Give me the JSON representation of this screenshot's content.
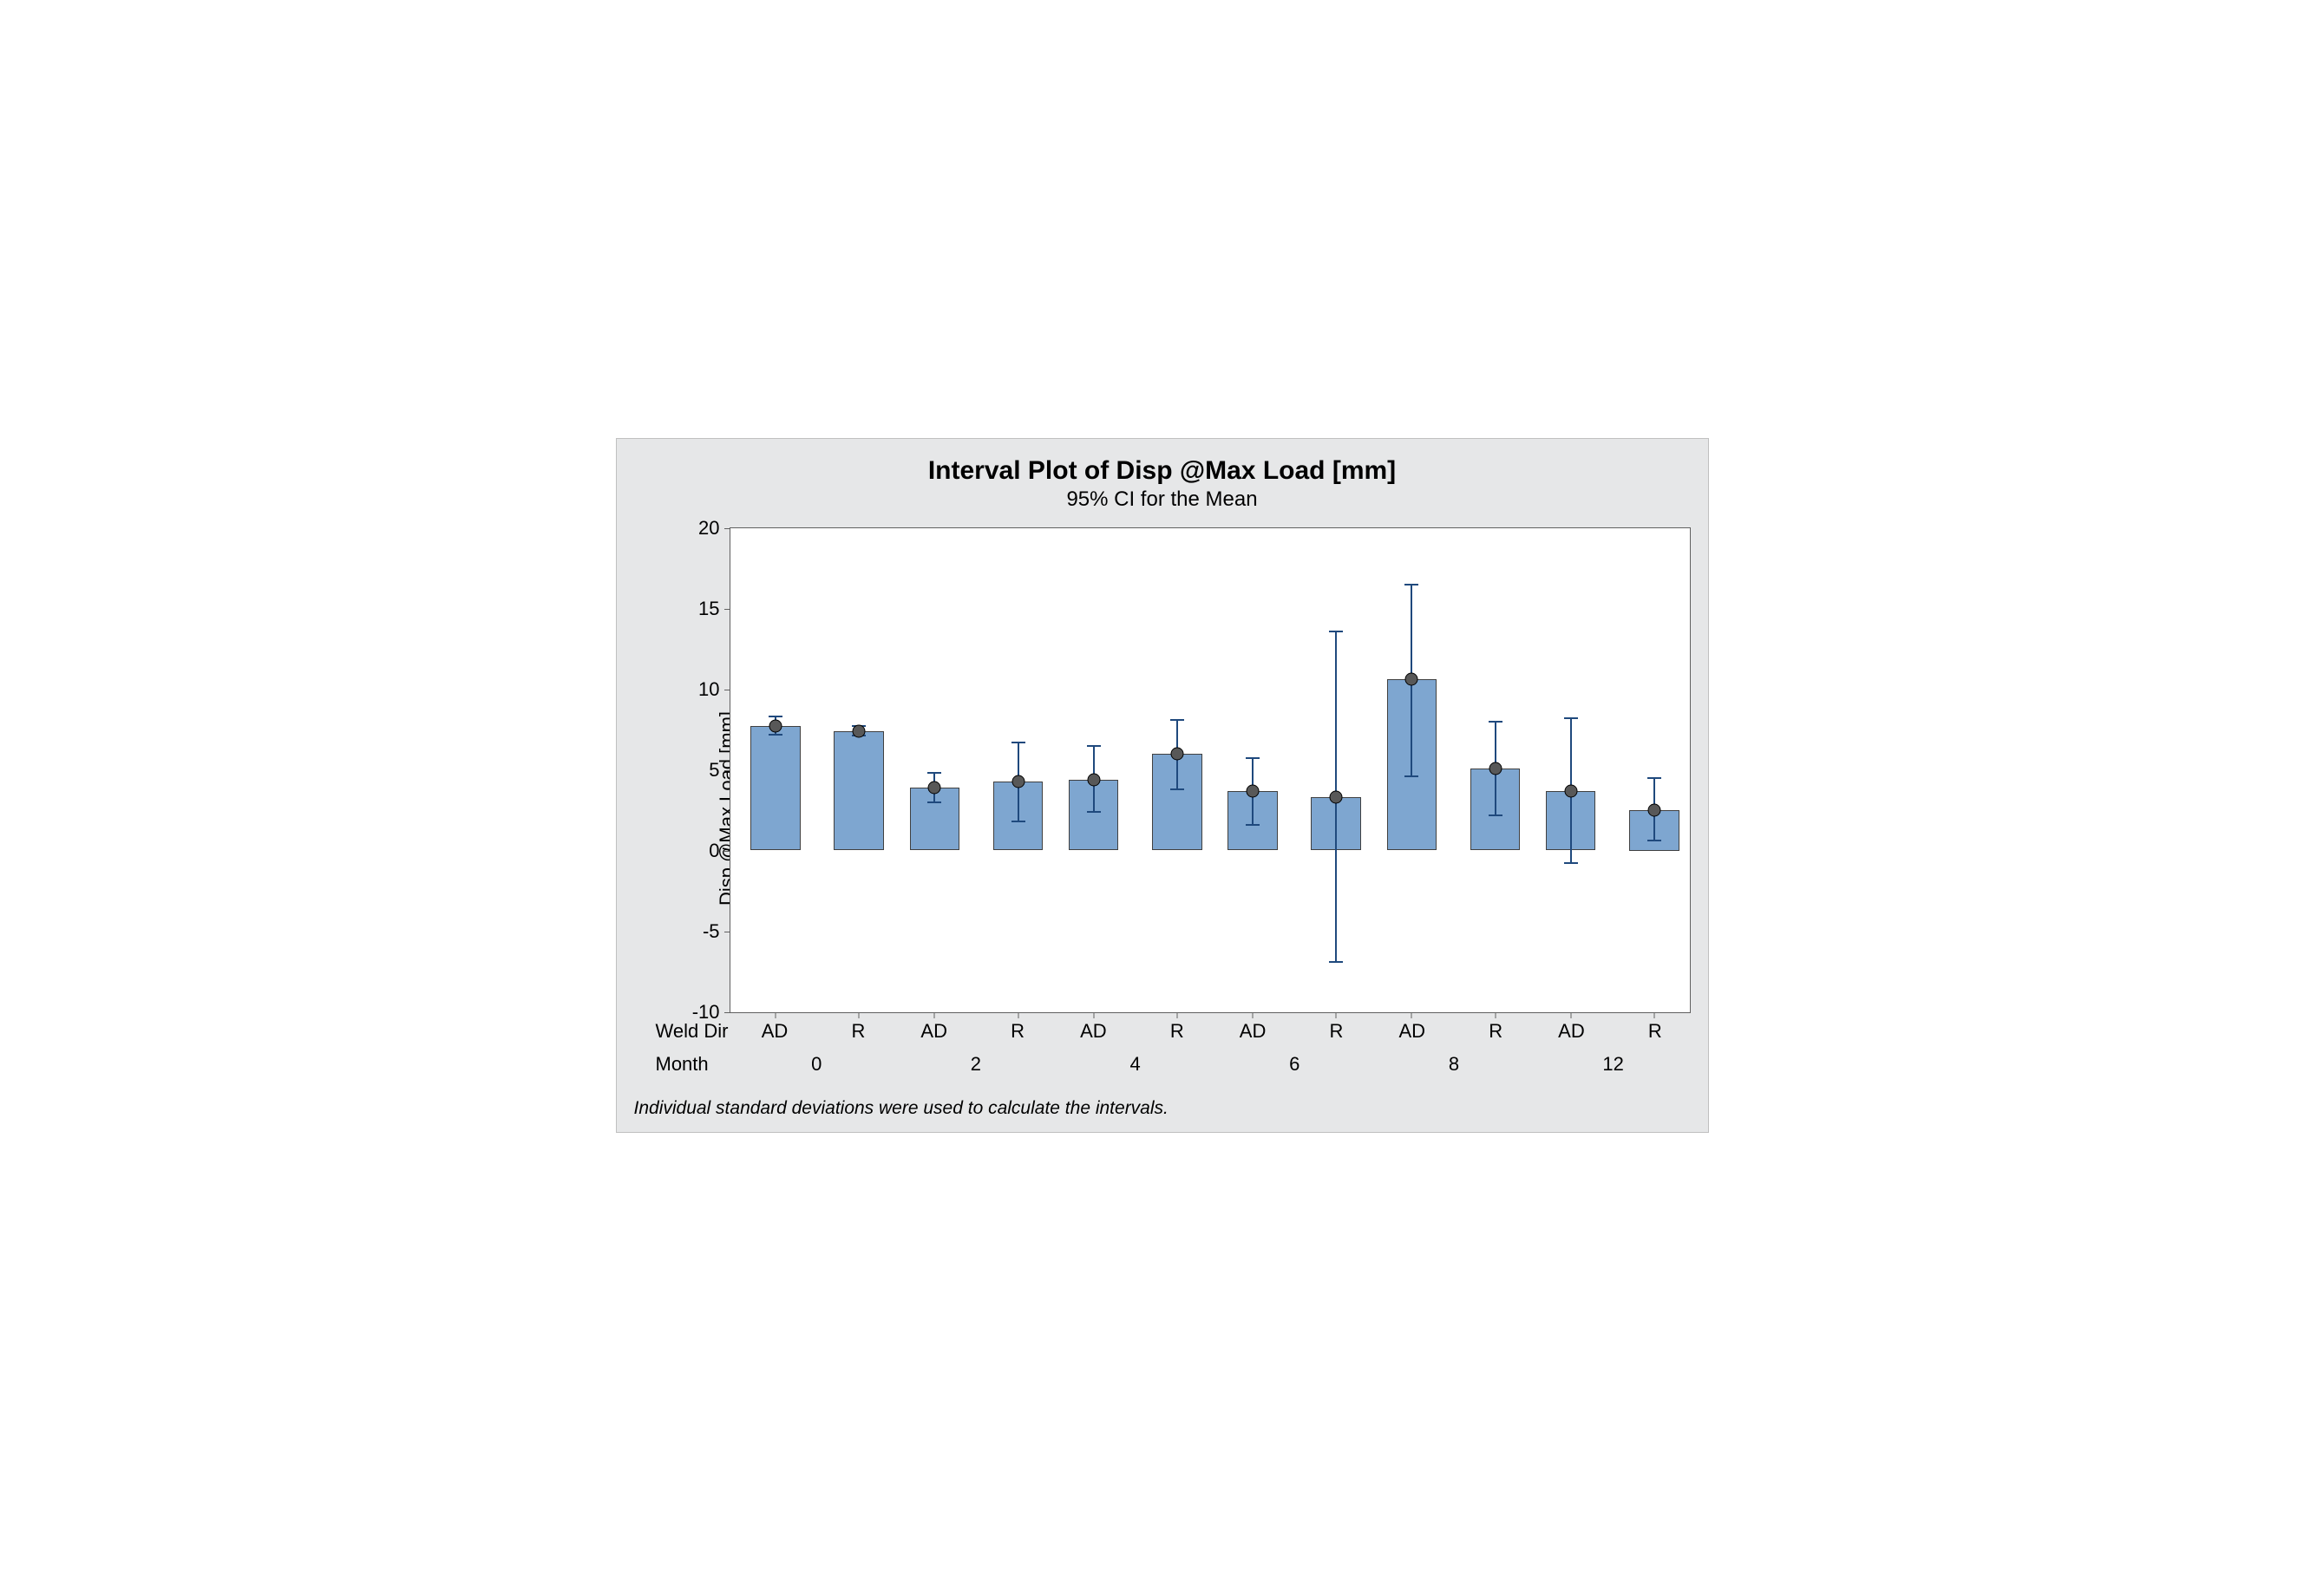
{
  "chart": {
    "type": "interval-bar",
    "title": "Interval Plot of Disp @Max Load [mm]",
    "subtitle": "95% CI for the Mean",
    "title_fontsize": 30,
    "subtitle_fontsize": 24,
    "y_axis_label": "Disp @Max Load [mm]",
    "ylim": [
      -10,
      20
    ],
    "yticks": [
      -10,
      -5,
      0,
      5,
      10,
      15,
      20
    ],
    "background_color": "#e6e7e8",
    "plot_background": "#ffffff",
    "border_color": "#606060",
    "bar_fill": "#7ea6d0",
    "bar_border": "#404040",
    "error_color": "#1f497d",
    "dot_fill": "#585858",
    "dot_border": "#000000",
    "dot_size": 15,
    "cap_width": 16,
    "bar_width_pct": 5.2,
    "group_gap_pct": 3.5,
    "x_row1_label": "Weld Dir",
    "x_row2_label": "Month",
    "groups": [
      {
        "month": "0",
        "bars": [
          {
            "weld_dir": "AD",
            "mean": 7.7,
            "low": 7.2,
            "high": 8.3
          },
          {
            "weld_dir": "R",
            "mean": 7.4,
            "low": 7.1,
            "high": 7.7
          }
        ]
      },
      {
        "month": "2",
        "bars": [
          {
            "weld_dir": "AD",
            "mean": 3.9,
            "low": 3.0,
            "high": 4.8
          },
          {
            "weld_dir": "R",
            "mean": 4.3,
            "low": 1.8,
            "high": 6.7
          }
        ]
      },
      {
        "month": "4",
        "bars": [
          {
            "weld_dir": "AD",
            "mean": 4.4,
            "low": 2.4,
            "high": 6.5
          },
          {
            "weld_dir": "R",
            "mean": 6.0,
            "low": 3.8,
            "high": 8.1
          }
        ]
      },
      {
        "month": "6",
        "bars": [
          {
            "weld_dir": "AD",
            "mean": 3.7,
            "low": 1.6,
            "high": 5.7
          },
          {
            "weld_dir": "R",
            "mean": 3.3,
            "low": -6.9,
            "high": 13.6
          }
        ]
      },
      {
        "month": "8",
        "bars": [
          {
            "weld_dir": "AD",
            "mean": 10.6,
            "low": 4.6,
            "high": 16.5
          },
          {
            "weld_dir": "R",
            "mean": 5.1,
            "low": 2.2,
            "high": 8.0
          }
        ]
      },
      {
        "month": "12",
        "bars": [
          {
            "weld_dir": "AD",
            "mean": 3.7,
            "low": -0.8,
            "high": 8.2
          },
          {
            "weld_dir": "R",
            "mean": 2.5,
            "low": 0.6,
            "high": 4.5
          }
        ]
      }
    ],
    "footnote": "Individual standard deviations were used to calculate the intervals."
  }
}
